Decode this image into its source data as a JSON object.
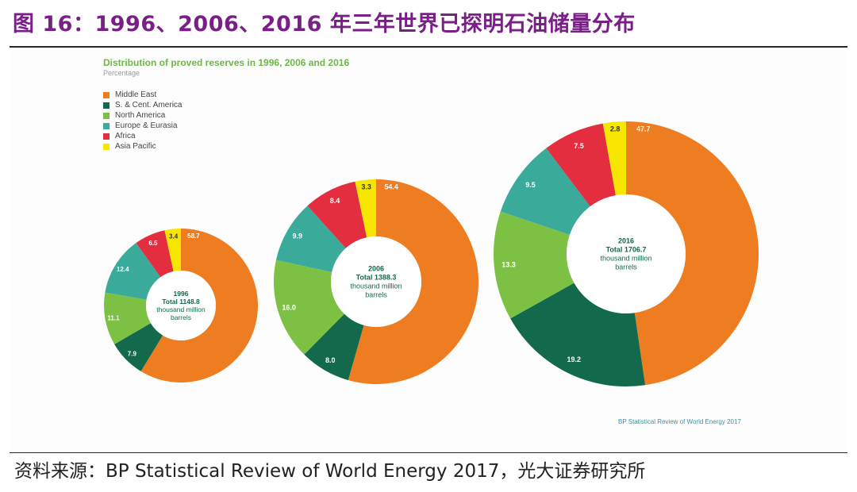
{
  "page": {
    "title": "图 16：1996、2006、2016 年三年世界已探明石油储量分布",
    "source": "资料来源：BP Statistical Review of World Energy 2017，光大证券研究所",
    "credit": "BP Statistical Review of World Energy 2017"
  },
  "chart_data": {
    "type": "pie",
    "title": "Distribution of proved reserves in 1996, 2006 and 2016",
    "subtitle": "Percentage",
    "legend_position": "top-left",
    "categories": [
      "Middle East",
      "S. & Cent. America",
      "North America",
      "Europe & Eurasia",
      "Africa",
      "Asia Pacific"
    ],
    "colors": [
      "#ee7d22",
      "#12694c",
      "#7cc143",
      "#3aaa9a",
      "#e42d3f",
      "#f6e600"
    ],
    "charts": [
      {
        "year": "1996",
        "total_label": "Total 1148.8",
        "unit_line1": "thousand million",
        "unit_line2": "barrels",
        "total": 1148.8,
        "values": [
          58.7,
          7.9,
          11.1,
          12.4,
          6.5,
          3.4
        ]
      },
      {
        "year": "2006",
        "total_label": "Total 1388.3",
        "unit_line1": "thousand million",
        "unit_line2": "barrels",
        "total": 1388.3,
        "values": [
          54.4,
          8.0,
          16.0,
          9.9,
          8.4,
          3.3
        ]
      },
      {
        "year": "2016",
        "total_label": "Total 1706.7",
        "unit_line1": "thousand million",
        "unit_line2": "barrels",
        "total": 1706.7,
        "values": [
          47.7,
          19.2,
          13.3,
          9.5,
          7.5,
          2.8
        ]
      }
    ]
  }
}
